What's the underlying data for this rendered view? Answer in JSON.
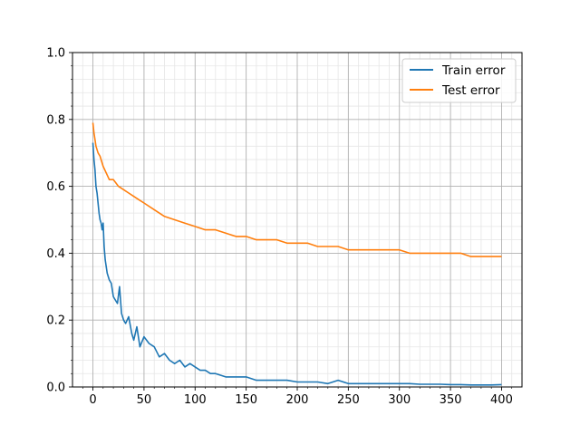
{
  "chart_data": {
    "type": "line",
    "title": "",
    "xlabel": "",
    "ylabel": "",
    "xlim": [
      -20,
      420
    ],
    "ylim": [
      0,
      1.0
    ],
    "x_major_ticks": [
      0,
      50,
      100,
      150,
      200,
      250,
      300,
      350,
      400
    ],
    "x_tick_labels": [
      "0",
      "50",
      "100",
      "150",
      "200",
      "250",
      "300",
      "350",
      "400"
    ],
    "y_major_ticks": [
      0.0,
      0.2,
      0.4,
      0.6,
      0.8,
      1.0
    ],
    "y_tick_labels": [
      "0.0",
      "0.2",
      "0.4",
      "0.6",
      "0.8",
      "1.0"
    ],
    "x_minor_step": 10,
    "y_minor_step": 0.04,
    "grid": "major and minor",
    "legend_position": "top-right",
    "series": [
      {
        "name": "Train error",
        "color": "#1f77b4",
        "x": [
          0,
          1,
          2,
          3,
          4,
          5,
          6,
          7,
          8,
          9,
          10,
          11,
          12,
          14,
          16,
          18,
          20,
          22,
          24,
          26,
          28,
          30,
          32,
          35,
          38,
          40,
          43,
          46,
          50,
          55,
          60,
          65,
          70,
          75,
          80,
          85,
          90,
          95,
          100,
          105,
          110,
          115,
          120,
          130,
          140,
          150,
          160,
          170,
          180,
          190,
          200,
          210,
          220,
          230,
          240,
          250,
          260,
          270,
          280,
          290,
          300,
          310,
          320,
          330,
          340,
          350,
          360,
          370,
          380,
          390,
          400
        ],
        "y": [
          0.73,
          0.68,
          0.65,
          0.6,
          0.58,
          0.55,
          0.52,
          0.5,
          0.49,
          0.47,
          0.49,
          0.42,
          0.38,
          0.34,
          0.32,
          0.31,
          0.27,
          0.26,
          0.25,
          0.3,
          0.22,
          0.2,
          0.19,
          0.21,
          0.16,
          0.14,
          0.18,
          0.12,
          0.15,
          0.13,
          0.12,
          0.09,
          0.1,
          0.08,
          0.07,
          0.08,
          0.06,
          0.07,
          0.06,
          0.05,
          0.05,
          0.04,
          0.04,
          0.03,
          0.03,
          0.03,
          0.02,
          0.02,
          0.02,
          0.02,
          0.015,
          0.015,
          0.015,
          0.01,
          0.02,
          0.01,
          0.01,
          0.01,
          0.01,
          0.01,
          0.01,
          0.01,
          0.008,
          0.008,
          0.008,
          0.007,
          0.007,
          0.006,
          0.006,
          0.006,
          0.007
        ]
      },
      {
        "name": "Test error",
        "color": "#ff7f0e",
        "x": [
          0,
          1,
          2,
          3,
          5,
          7,
          10,
          13,
          16,
          20,
          25,
          30,
          35,
          40,
          45,
          50,
          60,
          70,
          80,
          90,
          100,
          110,
          120,
          130,
          140,
          150,
          160,
          170,
          180,
          190,
          200,
          210,
          220,
          230,
          240,
          250,
          260,
          270,
          280,
          290,
          300,
          310,
          320,
          330,
          340,
          350,
          360,
          370,
          380,
          390,
          400
        ],
        "y": [
          0.79,
          0.76,
          0.74,
          0.72,
          0.7,
          0.69,
          0.66,
          0.64,
          0.62,
          0.62,
          0.6,
          0.59,
          0.58,
          0.57,
          0.56,
          0.55,
          0.53,
          0.51,
          0.5,
          0.49,
          0.48,
          0.47,
          0.47,
          0.46,
          0.45,
          0.45,
          0.44,
          0.44,
          0.44,
          0.43,
          0.43,
          0.43,
          0.42,
          0.42,
          0.42,
          0.41,
          0.41,
          0.41,
          0.41,
          0.41,
          0.41,
          0.4,
          0.4,
          0.4,
          0.4,
          0.4,
          0.4,
          0.39,
          0.39,
          0.39,
          0.39
        ]
      }
    ]
  }
}
